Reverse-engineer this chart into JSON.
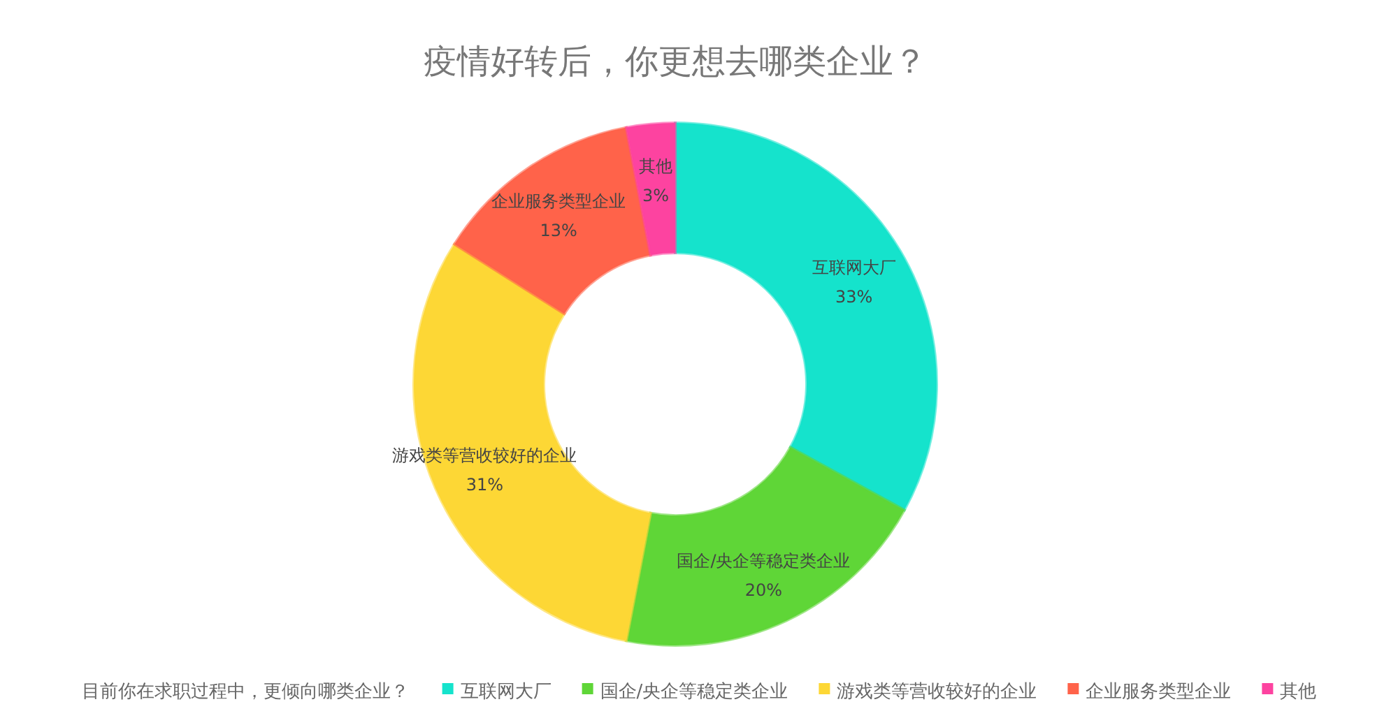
{
  "chart_data": {
    "type": "donut",
    "title": "疫情好转后，你更想去哪类企业？",
    "legend_title": "目前你在求职过程中，更倾向哪类企业？",
    "categories": [
      "互联网大厂",
      "国企/央企等稳定类企业",
      "游戏类等营收较好的企业",
      "企业服务类型企业",
      "其他"
    ],
    "values": [
      33,
      20,
      31,
      13,
      3
    ],
    "colors": [
      "#15e3cc",
      "#5fd637",
      "#fdd735",
      "#ff634a",
      "#fd43a0"
    ],
    "value_labels": [
      "33%",
      "20%",
      "31%",
      "13%",
      "3%"
    ],
    "legend": "bottom"
  }
}
